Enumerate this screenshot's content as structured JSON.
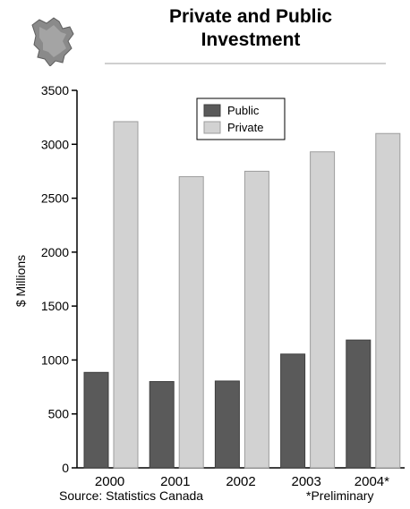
{
  "colors": {
    "public": "#5a5a5a",
    "private": "#d2d2d2",
    "axis": "#000000"
  },
  "logo_icon": "new-brunswick-map-icon",
  "footer": {
    "source": "Source: Statistics Canada",
    "note": "*Preliminary"
  },
  "chart_data": {
    "type": "bar",
    "title_lines": [
      "Private and Public",
      "Investment"
    ],
    "title": "Private and Public Investment",
    "xlabel": "",
    "ylabel": "$ Millions",
    "categories": [
      "2000",
      "2001",
      "2002",
      "2003",
      "2004*"
    ],
    "series": [
      {
        "name": "Public",
        "values": [
          885,
          800,
          805,
          1055,
          1185
        ]
      },
      {
        "name": "Private",
        "values": [
          3210,
          2700,
          2750,
          2930,
          3100
        ]
      }
    ],
    "ylim": [
      0,
      3500
    ],
    "yticks": [
      0,
      500,
      1000,
      1500,
      2000,
      2500,
      3000,
      3500
    ],
    "grid": false,
    "legend_position": "top-center"
  }
}
